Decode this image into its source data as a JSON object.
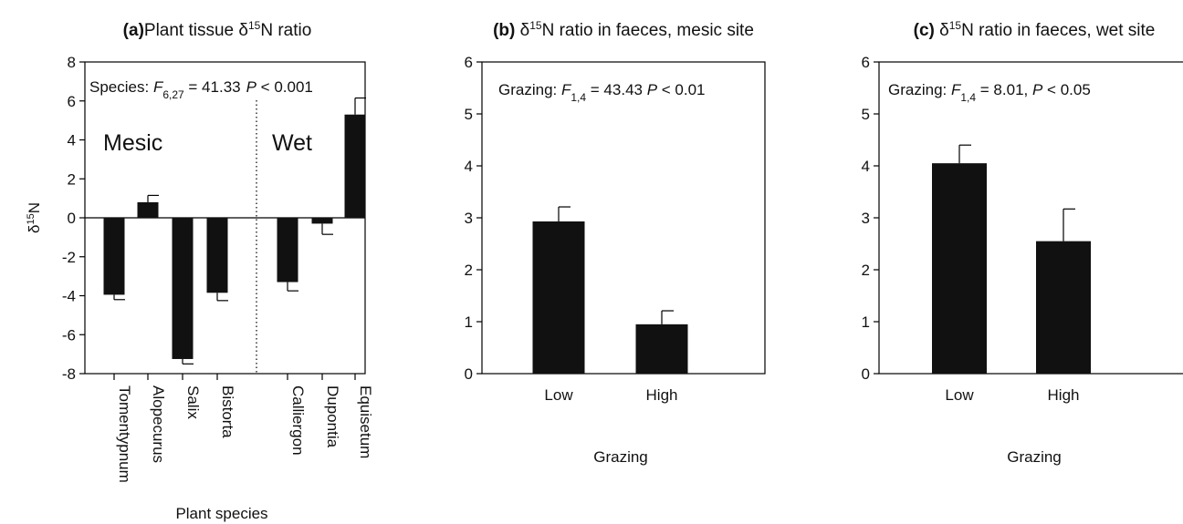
{
  "chart_data": [
    {
      "type": "bar",
      "panel": "a",
      "title": {
        "letter": "(a)",
        "text_before": "Plant tissue δ",
        "superscript": "15",
        "text_after": "N ratio"
      },
      "ylabel": {
        "main": "δ",
        "superscript": "15",
        "tail": "N"
      },
      "xlabel": "Plant species",
      "ylim": [
        -8,
        8
      ],
      "yticks": [
        -8,
        -6,
        -4,
        -2,
        0,
        2,
        4,
        6,
        8
      ],
      "categories": [
        "Tomentypnum",
        "Alopecurus",
        "Salix",
        "Bistorta",
        "Calliergon",
        "Dupontia",
        "Equisetum"
      ],
      "values": [
        -3.95,
        0.8,
        -7.25,
        -3.85,
        -3.3,
        -0.3,
        5.3
      ],
      "errors": [
        0.25,
        0.35,
        0.25,
        0.4,
        0.45,
        0.55,
        0.85
      ],
      "groups": [
        {
          "label": "Mesic"
        },
        {
          "label": "Wet"
        }
      ],
      "stat": {
        "prefix": "Species: ",
        "F": "F",
        "df": "6,27",
        "value": " = 41.33",
        "p": "P",
        "ptext": " <  0.001"
      }
    },
    {
      "type": "bar",
      "panel": "b",
      "title": {
        "letter": "(b)",
        "text_before": " δ",
        "superscript": "15",
        "text_after": "N ratio in faeces, mesic site"
      },
      "xlabel": "Grazing",
      "ylim": [
        0,
        6
      ],
      "yticks": [
        0,
        1,
        2,
        3,
        4,
        5,
        6
      ],
      "categories": [
        "Low",
        "High"
      ],
      "values": [
        2.93,
        0.95
      ],
      "errors": [
        0.28,
        0.26
      ],
      "stat": {
        "prefix": "Grazing: ",
        "F": "F",
        "df": "1,4",
        "value": " = 43.43 ",
        "p": "P",
        "ptext": " <  0.01"
      }
    },
    {
      "type": "bar",
      "panel": "c",
      "title": {
        "letter": "(c)",
        "text_before": " δ",
        "superscript": "15",
        "text_after": "N ratio in faeces, wet site"
      },
      "xlabel": "Grazing",
      "ylim": [
        0,
        6
      ],
      "yticks": [
        0,
        1,
        2,
        3,
        4,
        5,
        6
      ],
      "categories": [
        "Low",
        "High"
      ],
      "values": [
        4.05,
        2.55
      ],
      "errors": [
        0.35,
        0.62
      ],
      "stat": {
        "prefix": "Grazing: ",
        "F": "F",
        "df": "1,4",
        "value": " =  8.01, ",
        "p": "P",
        "ptext": " <  0.05"
      }
    }
  ]
}
